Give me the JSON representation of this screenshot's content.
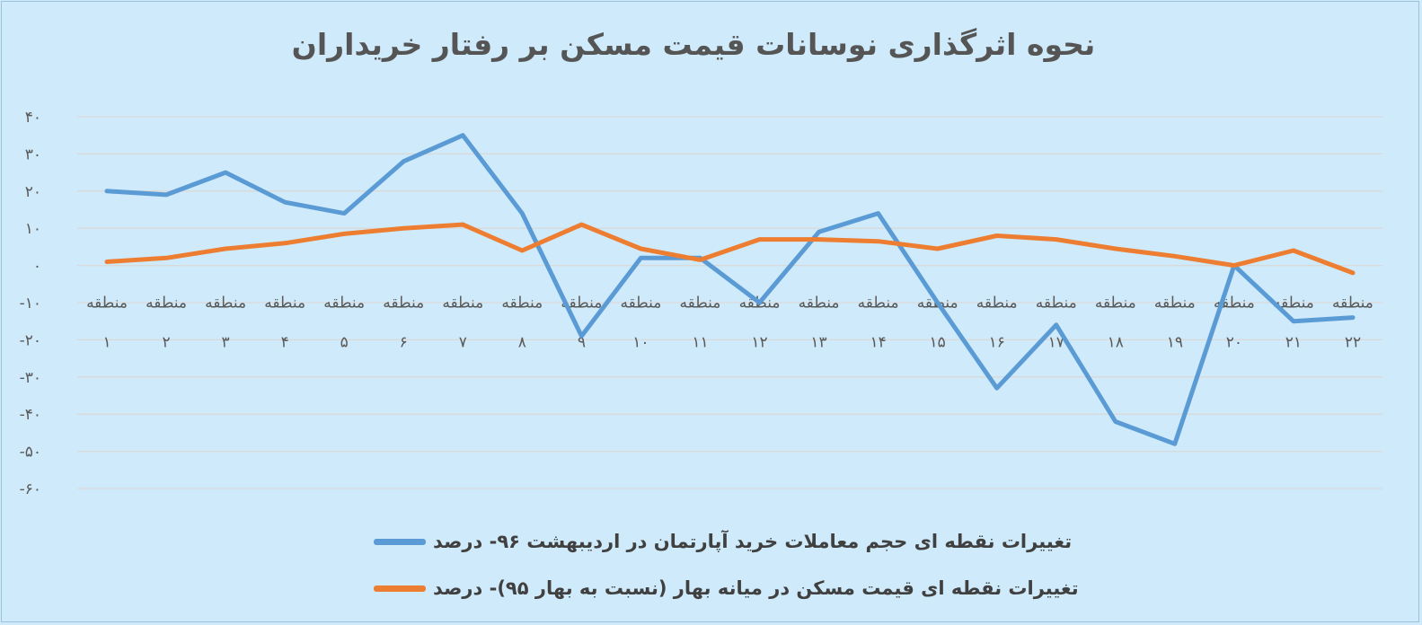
{
  "chart_data": {
    "type": "line",
    "title": "نحوه اثرگذاری نوسانات قیمت مسکن بر رفتار خریداران",
    "ylim": [
      -60,
      40
    ],
    "yticks": [
      "۴۰",
      "۳۰",
      "۲۰",
      "۱۰",
      "۰",
      "-۱۰",
      "-۲۰",
      "-۳۰",
      "-۴۰",
      "-۵۰",
      "-۶۰"
    ],
    "ytick_values": [
      40,
      30,
      20,
      10,
      0,
      -10,
      -20,
      -30,
      -40,
      -50,
      -60
    ],
    "categories": [
      {
        "word": "منطقه",
        "num": "۱"
      },
      {
        "word": "منطقه",
        "num": "۲"
      },
      {
        "word": "منطقه",
        "num": "۳"
      },
      {
        "word": "منطقه",
        "num": "۴"
      },
      {
        "word": "منطقه",
        "num": "۵"
      },
      {
        "word": "منطقه",
        "num": "۶"
      },
      {
        "word": "منطقه",
        "num": "۷"
      },
      {
        "word": "منطقه",
        "num": "۸"
      },
      {
        "word": "منطقه",
        "num": "۹"
      },
      {
        "word": "منطقه",
        "num": "۱۰"
      },
      {
        "word": "منطقه",
        "num": "۱۱"
      },
      {
        "word": "منطقه",
        "num": "۱۲"
      },
      {
        "word": "منطقه",
        "num": "۱۳"
      },
      {
        "word": "منطقه",
        "num": "۱۴"
      },
      {
        "word": "منطقه",
        "num": "۱۵"
      },
      {
        "word": "منطقه",
        "num": "۱۶"
      },
      {
        "word": "منطقه",
        "num": "۱۷"
      },
      {
        "word": "منطقه",
        "num": "۱۸"
      },
      {
        "word": "منطقه",
        "num": "۱۹"
      },
      {
        "word": "منطقه",
        "num": "۲۰"
      },
      {
        "word": "منطقه",
        "num": "۲۱"
      },
      {
        "word": "منطقه",
        "num": "۲۲"
      }
    ],
    "series": [
      {
        "name": "تغییرات نقطه ای حجم معاملات خرید آپارتمان در اردیبهشت ۹۶- درصد",
        "color": "#5b9bd5",
        "values": [
          20,
          19,
          25,
          17,
          14,
          28,
          35,
          14,
          -19,
          2,
          2,
          -10,
          9,
          14,
          -10,
          -33,
          -16,
          -42,
          -48,
          0,
          -15,
          -14
        ]
      },
      {
        "name": "تغییرات نقطه ای قیمت مسکن در میانه بهار (نسبت به بهار ۹۵)- درصد",
        "color": "#ed7d31",
        "values": [
          1,
          2,
          4.5,
          6,
          8.5,
          10,
          11,
          4,
          11,
          4.5,
          1.5,
          7,
          7,
          6.5,
          4.5,
          8,
          7,
          4.5,
          2.5,
          0,
          4,
          -2
        ]
      }
    ],
    "grid": true,
    "legend": "bottom"
  }
}
